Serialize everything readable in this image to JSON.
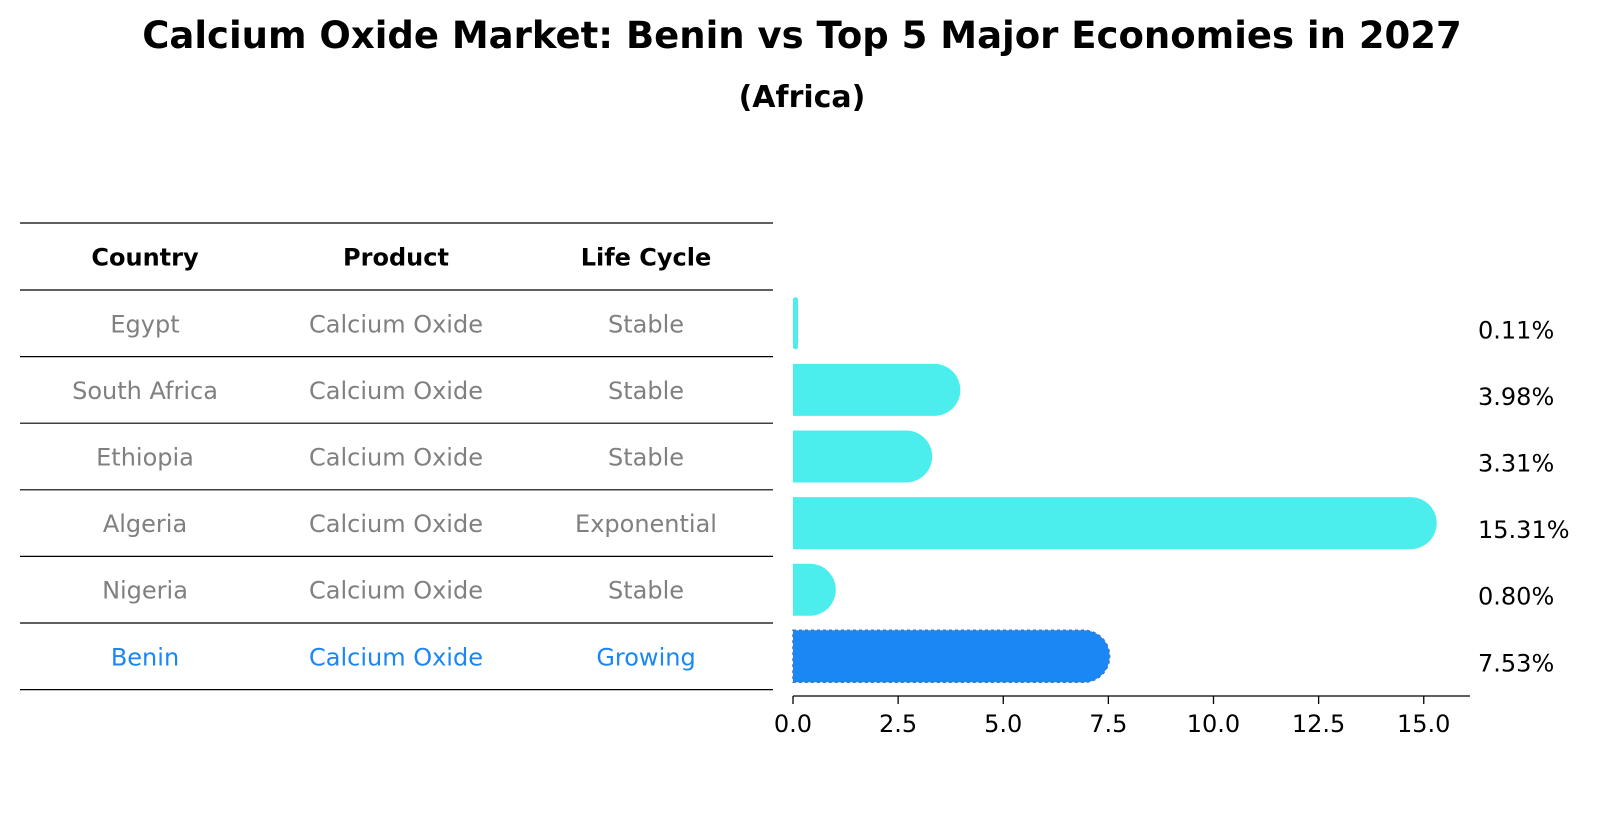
{
  "title": "Calcium Oxide Market: Benin vs Top 5 Major Economies in 2027",
  "subtitle": "(Africa)",
  "colors": {
    "bar": "#4beeed",
    "highlight_bar": "#1a87f5",
    "highlight_text": "#1a87f5",
    "normal_text": "#808080",
    "header_text": "#000000",
    "rule": "#000000"
  },
  "chart_data": {
    "type": "bar",
    "orientation": "horizontal",
    "table_headers": [
      "Country",
      "Product",
      "Life Cycle"
    ],
    "rows": [
      {
        "country": "Egypt",
        "product": "Calcium Oxide",
        "life_cycle": "Stable",
        "value": 0.11,
        "label": "0.11%",
        "highlight": false
      },
      {
        "country": "South Africa",
        "product": "Calcium Oxide",
        "life_cycle": "Stable",
        "value": 3.98,
        "label": "3.98%",
        "highlight": false
      },
      {
        "country": "Ethiopia",
        "product": "Calcium Oxide",
        "life_cycle": "Stable",
        "value": 3.31,
        "label": "3.31%",
        "highlight": false
      },
      {
        "country": "Algeria",
        "product": "Calcium Oxide",
        "life_cycle": "Exponential",
        "value": 15.31,
        "label": "15.31%",
        "highlight": false
      },
      {
        "country": "Nigeria",
        "product": "Calcium Oxide",
        "life_cycle": "Stable",
        "value": 0.8,
        "label": "0.80%",
        "highlight": false
      },
      {
        "country": "Benin",
        "product": "Calcium Oxide",
        "life_cycle": "Growing",
        "value": 7.53,
        "label": "7.53%",
        "highlight": true
      }
    ],
    "xlim": [
      0,
      16.1
    ],
    "xticks": [
      0.0,
      2.5,
      5.0,
      7.5,
      10.0,
      12.5,
      15.0
    ],
    "xtick_labels": [
      "0.0",
      "2.5",
      "5.0",
      "7.5",
      "10.0",
      "12.5",
      "15.0"
    ],
    "grid": false,
    "legend": "none"
  }
}
